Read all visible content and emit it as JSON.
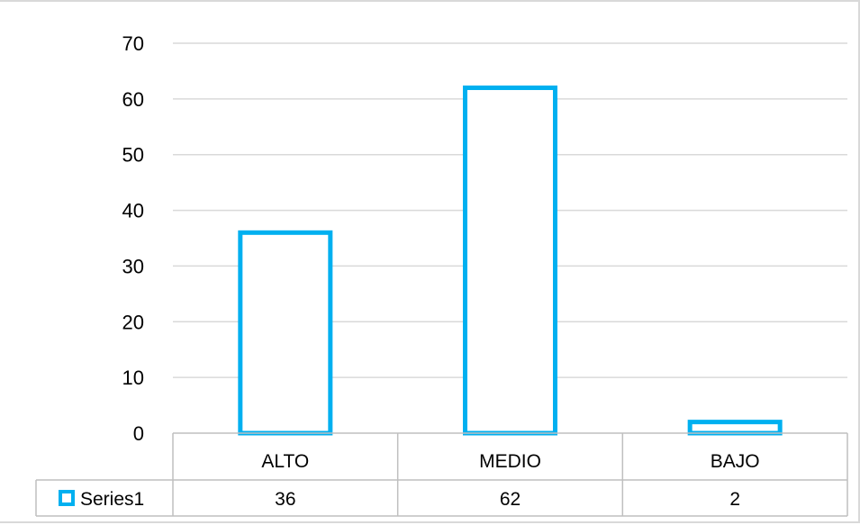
{
  "chart_data": {
    "type": "bar",
    "categories": [
      "ALTO",
      "MEDIO",
      "BAJO"
    ],
    "series": [
      {
        "name": "Series1",
        "values": [
          36,
          62,
          2
        ],
        "color": "#00b0f0",
        "fill": "none"
      }
    ],
    "ylim": [
      0,
      70
    ],
    "yticks": [
      "0",
      "10",
      "20",
      "30",
      "40",
      "50",
      "60",
      "70"
    ],
    "grid": true,
    "legend": "data-table",
    "data_table": true
  }
}
